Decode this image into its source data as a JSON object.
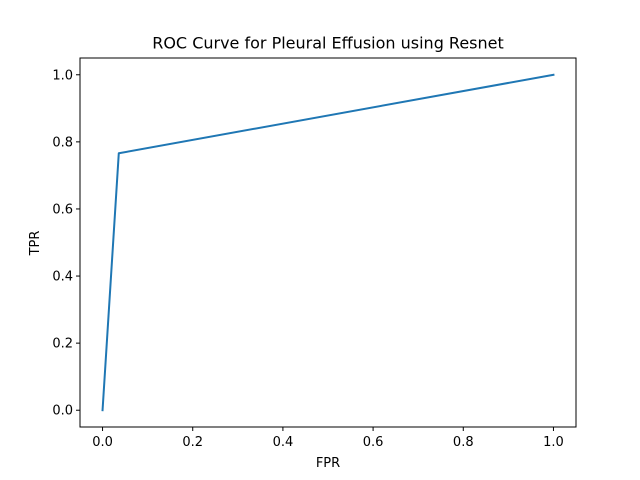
{
  "chart_data": {
    "type": "line",
    "title": "ROC Curve for Pleural Effusion using Resnet",
    "xlabel": "FPR",
    "ylabel": "TPR",
    "xlim": [
      -0.05,
      1.05
    ],
    "ylim": [
      -0.05,
      1.05
    ],
    "xticks": [
      0.0,
      0.2,
      0.4,
      0.6,
      0.8,
      1.0
    ],
    "yticks": [
      0.0,
      0.2,
      0.4,
      0.6,
      0.8,
      1.0
    ],
    "xtick_labels": [
      "0.0",
      "0.2",
      "0.4",
      "0.6",
      "0.8",
      "1.0"
    ],
    "ytick_labels": [
      "0.0",
      "0.2",
      "0.4",
      "0.6",
      "0.8",
      "1.0"
    ],
    "grid": false,
    "series": [
      {
        "color": "#1f77b4",
        "x": [
          0.0,
          0.036,
          1.0
        ],
        "y": [
          0.0,
          0.766,
          1.0
        ]
      }
    ]
  }
}
